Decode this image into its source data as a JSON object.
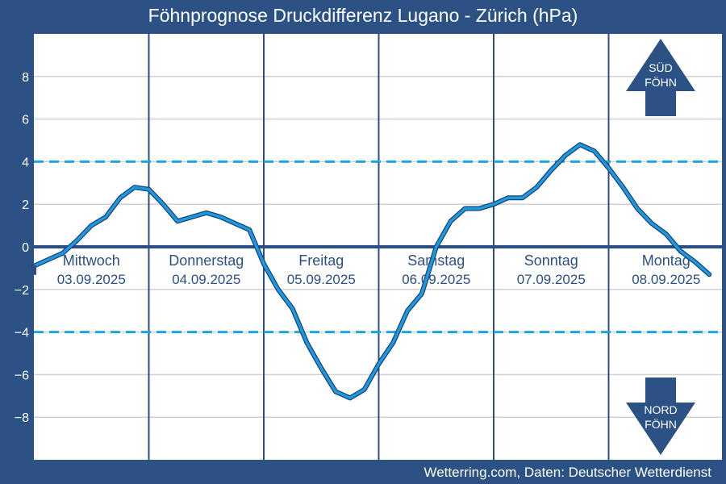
{
  "title": "Föhnprognose Druckdifferenz Lugano - Zürich (hPa)",
  "footer": "Wetterring.com, Daten: Deutscher Wetterdienst",
  "colors": {
    "background": "#2b5185",
    "plot_bg": "#ffffff",
    "series": "#1a9be0",
    "series_outline": "#1e3f75",
    "threshold": "#1aa6e6",
    "zero_line": "#2b4f84",
    "grid": "#d0d0d0",
    "arrow": "#2b5185",
    "text": "#2b4f84"
  },
  "indicators": {
    "sud": {
      "line1": "SÜD",
      "line2": "FÖHN",
      "icon": "arrow-up-icon"
    },
    "nord": {
      "line1": "NORD",
      "line2": "FÖHN",
      "icon": "arrow-down-icon"
    }
  },
  "chart_data": {
    "type": "line",
    "title": "Föhnprognose Druckdifferenz Lugano - Zürich (hPa)",
    "ylim": [
      -10,
      10
    ],
    "yticks": [
      -8,
      -6,
      -4,
      -2,
      0,
      2,
      4,
      6,
      8
    ],
    "ytick_labels": [
      "−8",
      "−6",
      "−4",
      "−2",
      "0",
      "2",
      "4",
      "6",
      "8"
    ],
    "thresholds": [
      4,
      -4
    ],
    "zero_line": 0,
    "grid": true,
    "days": [
      {
        "name": "Mittwoch",
        "date": "03.09.2025"
      },
      {
        "name": "Donnerstag",
        "date": "04.09.2025"
      },
      {
        "name": "Freitag",
        "date": "05.09.2025"
      },
      {
        "name": "Samstag",
        "date": "06.09.2025"
      },
      {
        "name": "Sonntag",
        "date": "07.09.2025"
      },
      {
        "name": "Montag",
        "date": "08.09.2025"
      }
    ],
    "x_hours": [
      0,
      3,
      6,
      9,
      12,
      15,
      18,
      21,
      24,
      27,
      30,
      33,
      36,
      39,
      42,
      45,
      48,
      51,
      54,
      57,
      60,
      63,
      66,
      69,
      72,
      75,
      78,
      81,
      84,
      87,
      90,
      93,
      96,
      99,
      102,
      105,
      108,
      111,
      114,
      117,
      120,
      123,
      126,
      129,
      132,
      135,
      138,
      141
    ],
    "values": [
      -0.9,
      -0.6,
      -0.3,
      0.3,
      1.0,
      1.4,
      2.3,
      2.8,
      2.7,
      2.0,
      1.2,
      1.4,
      1.6,
      1.4,
      1.1,
      0.8,
      -0.8,
      -2.0,
      -2.9,
      -4.5,
      -5.7,
      -6.8,
      -7.1,
      -6.7,
      -5.5,
      -4.5,
      -3.0,
      -2.2,
      0.0,
      1.2,
      1.8,
      1.8,
      2.0,
      2.3,
      2.3,
      2.8,
      3.6,
      4.3,
      4.8,
      4.5,
      3.7,
      2.8,
      1.8,
      1.1,
      0.6,
      -0.2,
      -0.7,
      -1.3
    ]
  }
}
